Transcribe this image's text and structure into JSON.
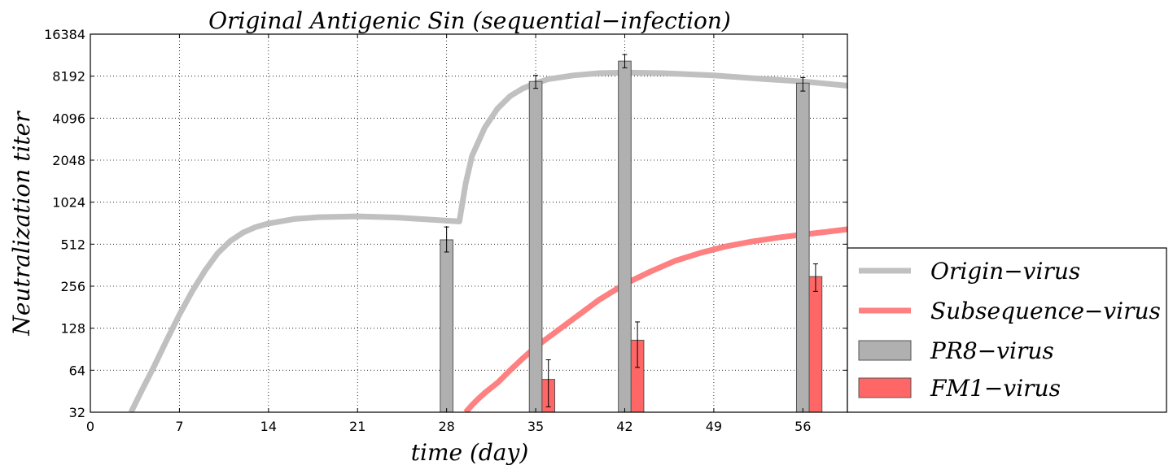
{
  "chart_data": {
    "type": "bar+line",
    "title": "Original Antigenic Sin (sequential−infection)",
    "xlabel": "time (day)",
    "ylabel": "Neutralization titer",
    "xlim": [
      0,
      59.5
    ],
    "ylim": [
      32,
      16384
    ],
    "yscale": "log2",
    "grid": true,
    "legend_position": "outside-right-bottom",
    "xticks": [
      0,
      7,
      14,
      21,
      28,
      35,
      42,
      49,
      56
    ],
    "xtick_labels": [
      "0",
      "7",
      "14",
      "21",
      "28",
      "35",
      "42",
      "49",
      "56"
    ],
    "yticks": [
      32,
      64,
      128,
      256,
      512,
      1024,
      2048,
      4096,
      8192,
      16384
    ],
    "ytick_labels": [
      "32",
      "64",
      "128",
      "256",
      "512",
      "1024",
      "2048",
      "4096",
      "8192",
      "16384"
    ],
    "series": [
      {
        "name": "Origin−virus",
        "kind": "line",
        "color": "#c0c0c0",
        "x": [
          3.2,
          4,
          5,
          6,
          7,
          8,
          9,
          10,
          11,
          12,
          13,
          14,
          16,
          18,
          21,
          24,
          27,
          29,
          29.5,
          30,
          31,
          32,
          33,
          34,
          35,
          36,
          38,
          40,
          42,
          45,
          49,
          53,
          56,
          59.5
        ],
        "y": [
          32,
          45,
          68,
          105,
          160,
          235,
          330,
          440,
          540,
          620,
          680,
          720,
          775,
          800,
          810,
          795,
          765,
          745,
          1400,
          2200,
          3500,
          4800,
          5900,
          6700,
          7300,
          7800,
          8300,
          8600,
          8700,
          8600,
          8300,
          7800,
          7500,
          7000
        ]
      },
      {
        "name": "Subsequence−virus",
        "kind": "line",
        "color": "#ff8080",
        "x": [
          29.5,
          30,
          30.5,
          31,
          32,
          33,
          34,
          35,
          36,
          38,
          40,
          42,
          44,
          46,
          48,
          50,
          52,
          54,
          56,
          58,
          59.5
        ],
        "y": [
          32,
          36,
          40,
          44,
          52,
          64,
          78,
          94,
          110,
          150,
          205,
          265,
          325,
          390,
          445,
          495,
          535,
          570,
          600,
          630,
          655
        ]
      },
      {
        "name": "PR8−virus",
        "kind": "bar",
        "color": "#b0b0b0",
        "edgecolor": "#555555",
        "x": [
          28,
          35,
          42,
          56
        ],
        "y": [
          550,
          7500,
          10500,
          7300
        ],
        "err_low": [
          450,
          6700,
          9400,
          6400
        ],
        "err_high": [
          680,
          8300,
          11700,
          8000
        ]
      },
      {
        "name": "FM1−virus",
        "kind": "bar",
        "color": "#ff6666",
        "edgecolor": "#555555",
        "x": [
          36,
          43,
          57
        ],
        "y": [
          55,
          105,
          300
        ],
        "err_low": [
          35,
          67,
          235
        ],
        "err_high": [
          76,
          142,
          370
        ]
      }
    ]
  }
}
